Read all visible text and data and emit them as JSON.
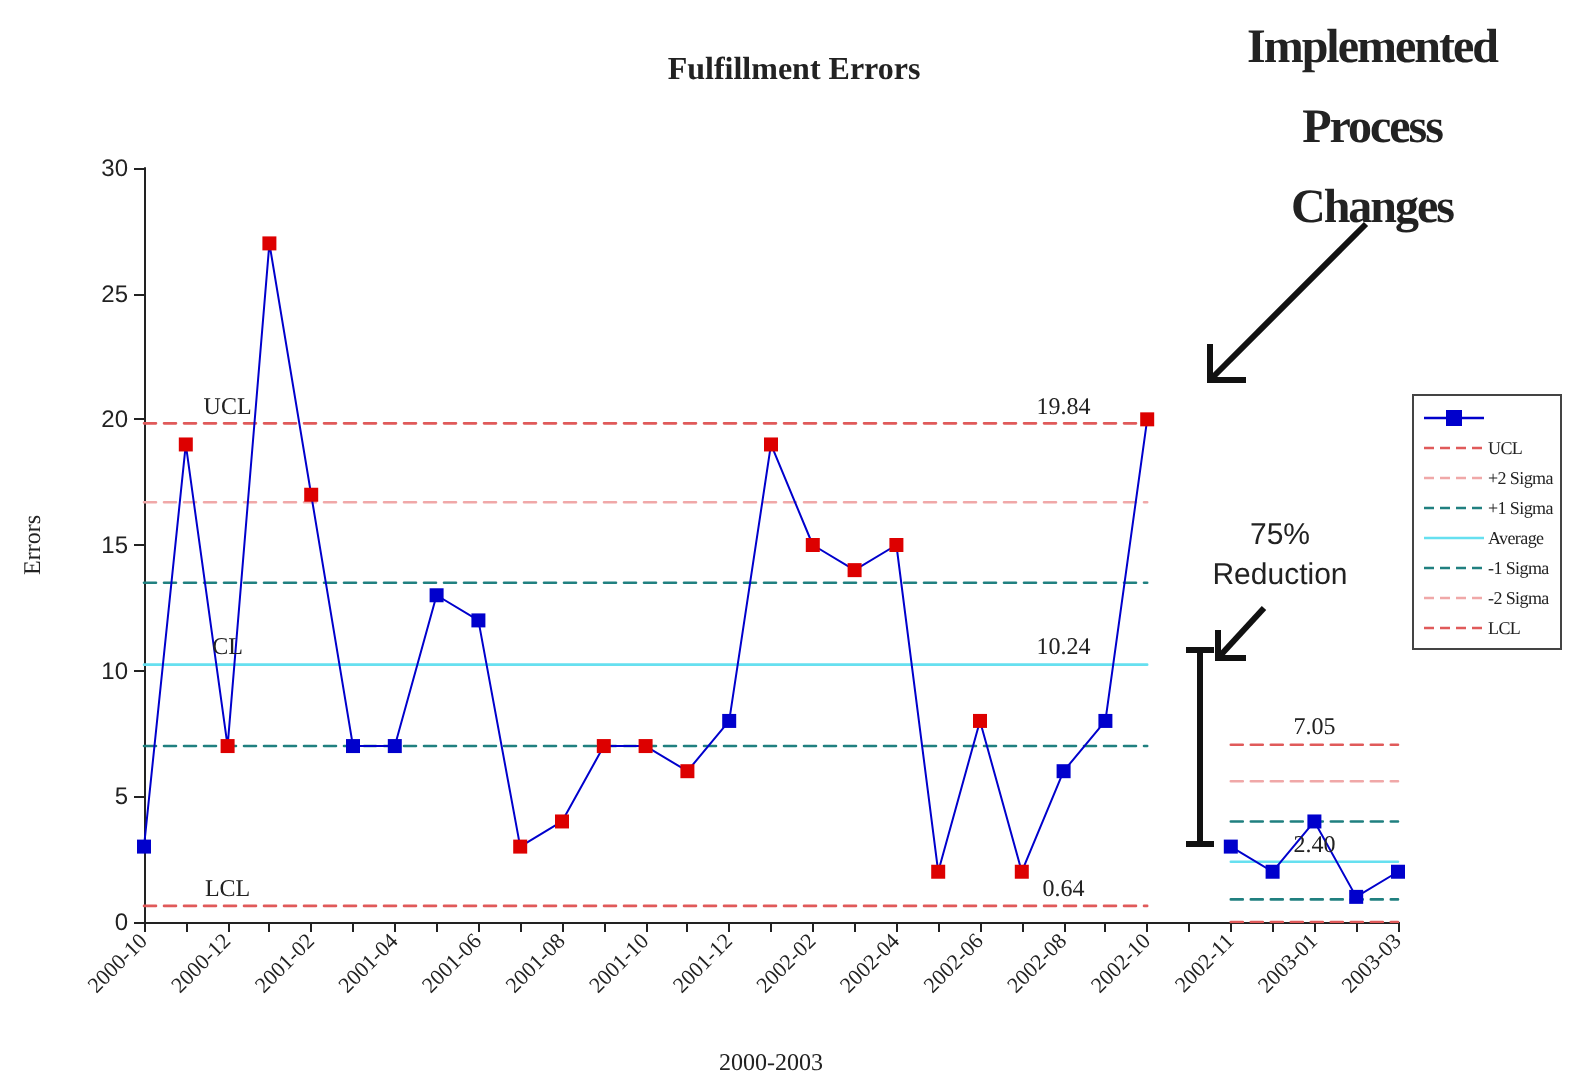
{
  "chart_data": {
    "type": "line",
    "title": "Fulfillment Errors",
    "xlabel": "2000-2003",
    "ylabel": "Errors",
    "categories": [
      "2000-10",
      null,
      "2000-12",
      null,
      "2001-02",
      null,
      "2001-04",
      null,
      "2001-06",
      null,
      "2001-08",
      null,
      "2001-10",
      null,
      "2001-12",
      null,
      "2002-02",
      null,
      "2002-04",
      null,
      "2002-06",
      null,
      "2002-08",
      null,
      "2002-10",
      null,
      "2002-11",
      null,
      "2003-01",
      null,
      "2003-03"
    ],
    "ylim": [
      0,
      30
    ],
    "yticks": [
      0,
      5,
      10,
      15,
      20,
      25,
      30
    ],
    "grid": false,
    "legend": "right",
    "marker": "square",
    "series": [
      {
        "color": "#0000cc",
        "values": [
          3,
          19,
          7,
          27,
          17,
          7,
          7,
          13,
          12,
          3,
          4,
          7,
          7,
          6,
          8,
          19,
          15,
          14,
          15,
          2,
          8,
          2,
          6,
          8,
          20,
          null,
          3,
          2,
          4,
          1,
          2
        ],
        "colors": [
          "#0000cc",
          "#dd0000",
          "#dd0000",
          "#dd0000",
          "#dd0000",
          "#0000cc",
          "#0000cc",
          "#0000cc",
          "#0000cc",
          "#dd0000",
          "#dd0000",
          "#dd0000",
          "#dd0000",
          "#dd0000",
          "#0000cc",
          "#dd0000",
          "#dd0000",
          "#dd0000",
          "#dd0000",
          "#dd0000",
          "#dd0000",
          "#dd0000",
          "#0000cc",
          "#0000cc",
          "#dd0000",
          null,
          "#0000cc",
          "#0000cc",
          "#0000cc",
          "#0000cc",
          "#0000cc"
        ]
      },
      {
        "name": "UCL",
        "color": "#e05a5a",
        "marker": "none",
        "line_style": "dashed",
        "values": [
          19.84,
          19.84,
          19.84,
          19.84,
          19.84,
          19.84,
          19.84,
          19.84,
          19.84,
          19.84,
          19.84,
          19.84,
          19.84,
          19.84,
          19.84,
          19.84,
          19.84,
          19.84,
          19.84,
          19.84,
          19.84,
          19.84,
          19.84,
          19.84,
          19.84,
          null,
          7.05,
          7.05,
          7.05,
          7.05,
          7.05
        ]
      },
      {
        "name": "+2 Sigma",
        "color": "#f0a8a8",
        "marker": "none",
        "line_style": "dashed",
        "values": [
          16.7,
          16.7,
          16.7,
          16.7,
          16.7,
          16.7,
          16.7,
          16.7,
          16.7,
          16.7,
          16.7,
          16.7,
          16.7,
          16.7,
          16.7,
          16.7,
          16.7,
          16.7,
          16.7,
          16.7,
          16.7,
          16.7,
          16.7,
          16.7,
          16.7,
          null,
          5.6,
          5.6,
          5.6,
          5.6,
          5.6
        ]
      },
      {
        "name": "+1 Sigma",
        "color": "#208080",
        "marker": "none",
        "line_style": "dashed",
        "values": [
          13.5,
          13.5,
          13.5,
          13.5,
          13.5,
          13.5,
          13.5,
          13.5,
          13.5,
          13.5,
          13.5,
          13.5,
          13.5,
          13.5,
          13.5,
          13.5,
          13.5,
          13.5,
          13.5,
          13.5,
          13.5,
          13.5,
          13.5,
          13.5,
          13.5,
          null,
          4,
          4,
          4,
          4,
          4
        ]
      },
      {
        "name": "Average",
        "color": "#66e0f0",
        "marker": "none",
        "line_style": "solid",
        "values": [
          10.24,
          10.24,
          10.24,
          10.24,
          10.24,
          10.24,
          10.24,
          10.24,
          10.24,
          10.24,
          10.24,
          10.24,
          10.24,
          10.24,
          10.24,
          10.24,
          10.24,
          10.24,
          10.24,
          10.24,
          10.24,
          10.24,
          10.24,
          10.24,
          10.24,
          null,
          2.4,
          2.4,
          2.4,
          2.4,
          2.4
        ]
      },
      {
        "name": "-1 Sigma",
        "color": "#208080",
        "marker": "none",
        "line_style": "dashed",
        "values": [
          7,
          7,
          7,
          7,
          7,
          7,
          7,
          7,
          7,
          7,
          7,
          7,
          7,
          7,
          7,
          7,
          7,
          7,
          7,
          7,
          7,
          7,
          7,
          7,
          7,
          null,
          0.9,
          0.9,
          0.9,
          0.9,
          0.9
        ]
      },
      {
        "name": "-2 Sigma",
        "color": "#f0a8a8",
        "marker": "none",
        "line_style": "dashed",
        "values": [
          null,
          null,
          null,
          null,
          null,
          null,
          null,
          null,
          null,
          null,
          null,
          null,
          null,
          null,
          null,
          null,
          null,
          null,
          null,
          null,
          null,
          null,
          null,
          null,
          null,
          null,
          null,
          null,
          null,
          null,
          null
        ]
      },
      {
        "name": "LCL",
        "color": "#e05a5a",
        "marker": "none",
        "line_style": "dashed",
        "values": [
          0.64,
          0.64,
          0.64,
          0.64,
          0.64,
          0.64,
          0.64,
          0.64,
          0.64,
          0.64,
          0.64,
          0.64,
          0.64,
          0.64,
          0.64,
          0.64,
          0.64,
          0.64,
          0.64,
          0.64,
          0.64,
          0.64,
          0.64,
          0.64,
          0.64,
          null,
          0,
          0,
          0,
          0,
          0
        ]
      }
    ],
    "annotations": [
      {
        "text": "UCL",
        "x": "2000-12",
        "y": 19.84
      },
      {
        "text": "CL",
        "x": "2000-12",
        "y": 10.24
      },
      {
        "text": "LCL",
        "x": "2000-12",
        "y": 0.64
      },
      {
        "text": "19.84",
        "x": "2002-08",
        "y": 19.84
      },
      {
        "text": "10.24",
        "x": "2002-08",
        "y": 10.24
      },
      {
        "text": "0.64",
        "x": "2002-08",
        "y": 0.64
      },
      {
        "text": "7.05",
        "x": "2003-01",
        "y": 7.05
      },
      {
        "text": "2.40",
        "x": "2003-01",
        "y": 2.4
      },
      "Implemented Process Changes",
      "75% Reduction"
    ]
  }
}
